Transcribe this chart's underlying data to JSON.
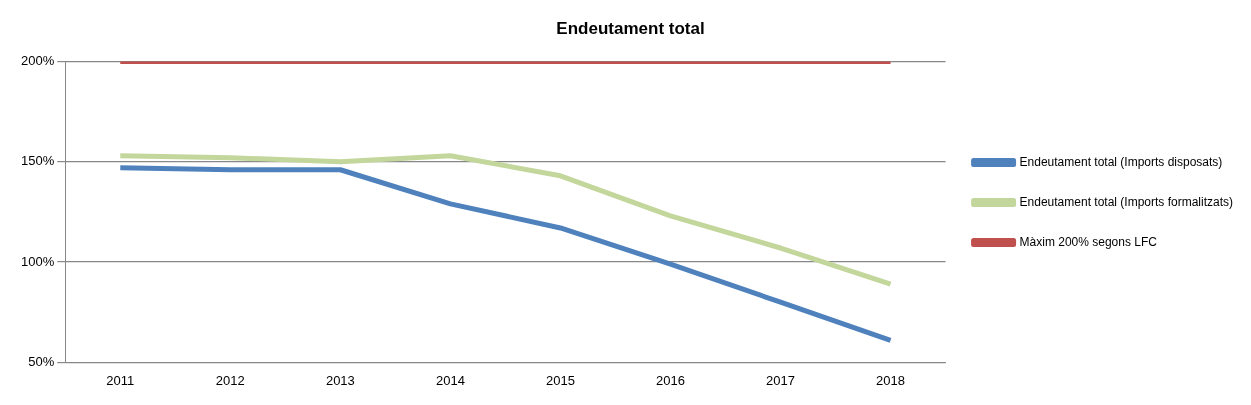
{
  "chart_data": {
    "type": "line",
    "title": "Endeutament total",
    "categories": [
      "2011",
      "2012",
      "2013",
      "2014",
      "2015",
      "2016",
      "2017",
      "2018"
    ],
    "series": [
      {
        "name": "Endeutament total (Imports disposats)",
        "color": "#4f81bd",
        "values": [
          147,
          146,
          146,
          129,
          117,
          99,
          80,
          61
        ]
      },
      {
        "name": "Endeutament total (Imports formalitzats)",
        "color": "#c3d69b",
        "values": [
          153,
          152,
          150,
          153,
          143,
          123,
          107,
          89
        ]
      },
      {
        "name": "Màxim 200% segons LFC",
        "color": "#c0504d",
        "values": [
          200,
          200,
          200,
          200,
          200,
          200,
          200,
          200
        ]
      }
    ],
    "ylim": [
      50,
      200
    ],
    "yticks": [
      {
        "value": 50,
        "label": "50%"
      },
      {
        "value": 100,
        "label": "100%"
      },
      {
        "value": 150,
        "label": "150%"
      },
      {
        "value": 200,
        "label": "200%"
      }
    ],
    "grid": "y",
    "legend": "right",
    "marker": "none",
    "line_style": "solid"
  }
}
